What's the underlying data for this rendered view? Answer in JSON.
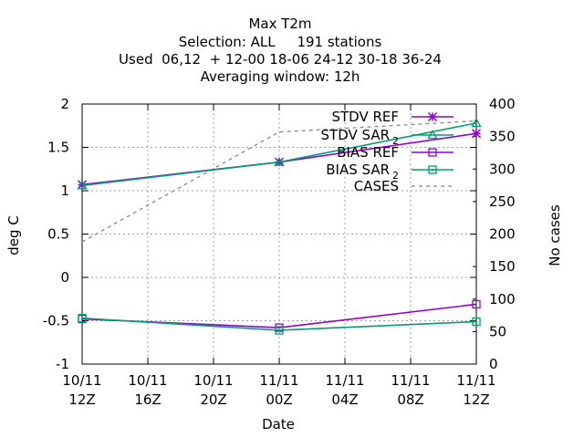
{
  "chart_data": {
    "type": "line",
    "title": "Max T2m",
    "subtitle_lines": [
      "Selection: ALL     191 stations",
      "Used  06,12  + 12-00 18-06 24-12 30-18 36-24",
      "Averaging window: 12h"
    ],
    "xlabel": "Date",
    "ylabel": "deg C",
    "y2label": "No cases",
    "x": [
      0,
      12,
      24
    ],
    "xlim": [
      0,
      24
    ],
    "xticks": [
      {
        "value": 0,
        "line1": "10/11",
        "line2": "12Z"
      },
      {
        "value": 4,
        "line1": "10/11",
        "line2": "16Z"
      },
      {
        "value": 8,
        "line1": "10/11",
        "line2": "20Z"
      },
      {
        "value": 12,
        "line1": "11/11",
        "line2": "00Z"
      },
      {
        "value": 16,
        "line1": "11/11",
        "line2": "04Z"
      },
      {
        "value": 20,
        "line1": "11/11",
        "line2": "08Z"
      },
      {
        "value": 24,
        "line1": "11/11",
        "line2": "12Z"
      }
    ],
    "ylim": [
      -1,
      2
    ],
    "yticks": [
      "-1",
      "-0.5",
      "0",
      "0.5",
      "1",
      "1.5",
      "2"
    ],
    "y2lim": [
      0,
      400
    ],
    "y2ticks": [
      "0",
      "50",
      "100",
      "150",
      "200",
      "250",
      "300",
      "350",
      "400"
    ],
    "grid": true,
    "legend_position": "top-right",
    "series": [
      {
        "name": "STDV REF",
        "sub": "",
        "axis": "y",
        "color": "#9400d3",
        "marker": "star",
        "dash": "",
        "values": [
          1.07,
          1.33,
          1.66
        ]
      },
      {
        "name": "STDV SAR",
        "sub": "2",
        "axis": "y",
        "color": "#009e73",
        "marker": "triangle",
        "dash": "",
        "values": [
          1.06,
          1.33,
          1.78
        ]
      },
      {
        "name": "BIAS REF",
        "sub": "",
        "axis": "y",
        "color": "#9400d3",
        "marker": "square",
        "dash": "",
        "values": [
          -0.48,
          -0.58,
          -0.31
        ]
      },
      {
        "name": "BIAS SAR",
        "sub": "2",
        "axis": "y",
        "color": "#009e73",
        "marker": "square-dot",
        "dash": "",
        "values": [
          -0.47,
          -0.61,
          -0.51
        ]
      },
      {
        "name": "CASES",
        "sub": "",
        "axis": "y2",
        "color": "#888888",
        "marker": "none",
        "dash": "4,4",
        "values": [
          188,
          357,
          374
        ]
      }
    ]
  }
}
